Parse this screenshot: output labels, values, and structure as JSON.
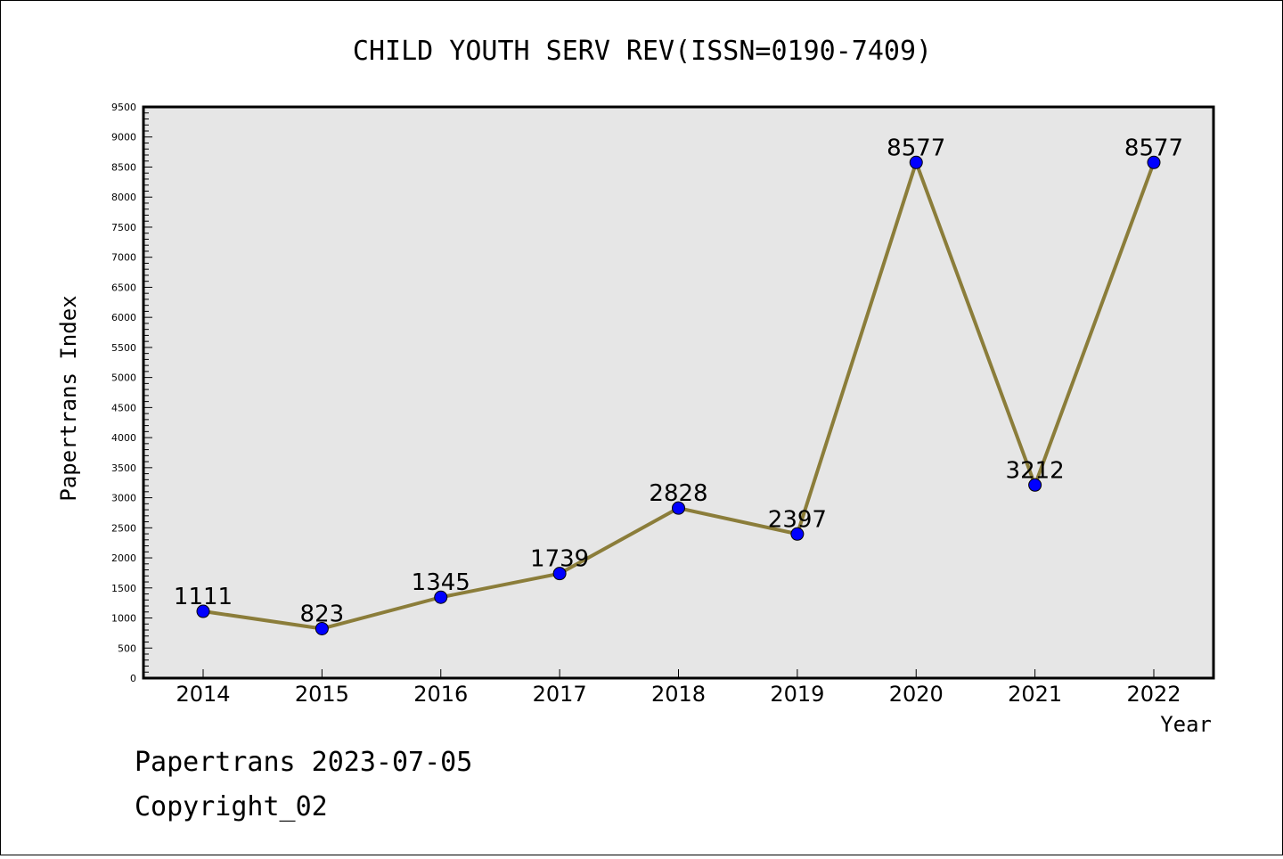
{
  "chart_data": {
    "type": "line",
    "title": "CHILD YOUTH SERV REV(ISSN=0190-7409)",
    "xlabel": "Year",
    "ylabel": "Papertrans Index",
    "categories": [
      "2014",
      "2015",
      "2016",
      "2017",
      "2018",
      "2019",
      "2020",
      "2021",
      "2022"
    ],
    "values": [
      1111,
      823,
      1345,
      1739,
      2828,
      2397,
      8577,
      3212,
      8577
    ],
    "data_labels": [
      "1111",
      "823",
      "1345",
      "1739",
      "2828",
      "2397",
      "8577",
      "3212",
      "8577"
    ],
    "ylim": [
      0,
      9500
    ],
    "yticks": [
      "0",
      "500",
      "1000",
      "1500",
      "2000",
      "2500",
      "3000",
      "3500",
      "4000",
      "4500",
      "5000",
      "5500",
      "6000",
      "6500",
      "7000",
      "7500",
      "8000",
      "8500",
      "9000",
      "9500"
    ],
    "grid": false,
    "legend": "none",
    "colors": {
      "line": "#8b7d3a",
      "marker": "#0000ff",
      "plot_background": "#e6e6e6"
    }
  },
  "footer": {
    "line1": "Papertrans 2023-07-05",
    "line2": "Copyright_02"
  }
}
